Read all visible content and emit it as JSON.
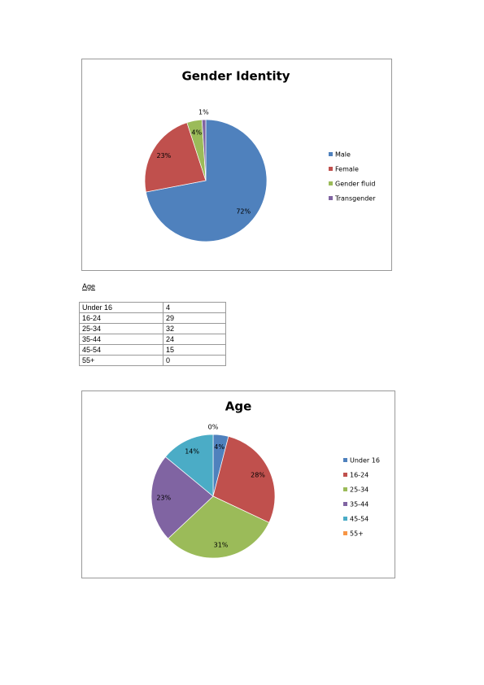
{
  "chart_data": [
    {
      "type": "pie",
      "title": "Gender Identity",
      "categories": [
        "Male",
        "Female",
        "Gender fluid",
        "Transgender"
      ],
      "values": [
        72,
        23,
        4,
        1
      ],
      "value_labels": [
        "72%",
        "23%",
        "4%",
        "1%"
      ],
      "colors": [
        "#4f81bd",
        "#c0504d",
        "#9bbb59",
        "#8064a2"
      ]
    },
    {
      "type": "pie",
      "title": "Age",
      "categories": [
        "Under 16",
        "16-24",
        "25-34",
        "35-44",
        "45-54",
        "55+"
      ],
      "values": [
        4,
        28,
        31,
        23,
        14,
        0
      ],
      "value_labels": [
        "4%",
        "28%",
        "31%",
        "23%",
        "14%",
        "0%"
      ],
      "colors": [
        "#4f81bd",
        "#c0504d",
        "#9bbb59",
        "#8064a2",
        "#4bacc6",
        "#f79646"
      ]
    }
  ],
  "document": {
    "heading": "Age",
    "table": {
      "rows": [
        [
          "Under 16",
          4
        ],
        [
          "16-24",
          29
        ],
        [
          "25-34",
          32
        ],
        [
          "35-44",
          24
        ],
        [
          "45-54",
          15
        ],
        [
          "55+",
          0
        ]
      ]
    }
  }
}
